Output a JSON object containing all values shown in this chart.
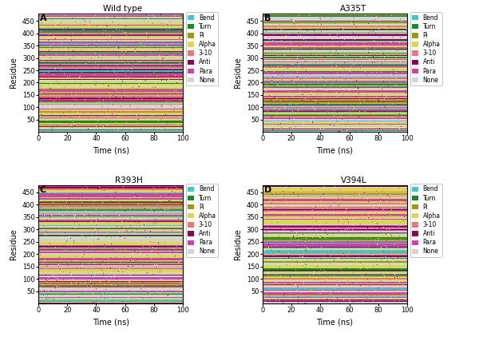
{
  "panels": [
    {
      "label": "A",
      "title": "Wild type"
    },
    {
      "label": "B",
      "title": "A335T"
    },
    {
      "label": "C",
      "title": "R393H"
    },
    {
      "label": "D",
      "title": "V394L"
    }
  ],
  "ss_types": [
    "Bend",
    "Turn",
    "Pi",
    "Alpha",
    "3-10",
    "Anti",
    "Para",
    "None"
  ],
  "ss_colors": {
    "Bend": "#3ec8c8",
    "Turn": "#1a8a2a",
    "Pi": "#9a9a10",
    "Alpha": "#d8d855",
    "3-10": "#e87878",
    "Anti": "#8a0055",
    "Para": "#cc44aa",
    "None": "#d5d5d5"
  },
  "n_residues": 480,
  "n_frames": 500,
  "residue_min": 1,
  "residue_max": 480,
  "time_min": 0,
  "time_max": 100,
  "yticks": [
    50,
    100,
    150,
    200,
    250,
    300,
    350,
    400,
    450
  ],
  "xticks": [
    0,
    20,
    40,
    60,
    80,
    100
  ],
  "xlabel": "Time (ns)",
  "ylabel": "Residue",
  "figsize": [
    6.0,
    4.22
  ],
  "dpi": 100,
  "seed": 42
}
